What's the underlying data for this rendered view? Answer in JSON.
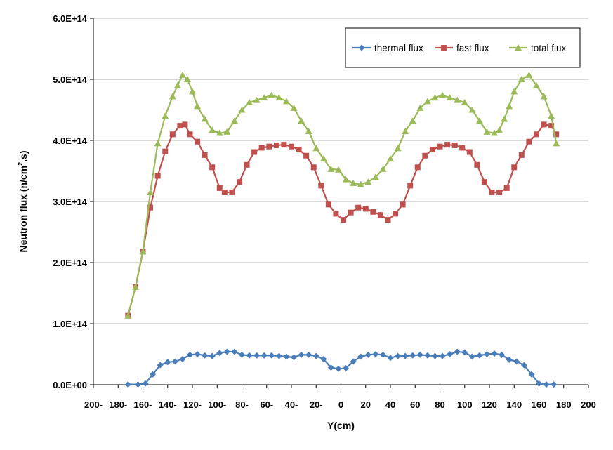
{
  "chart_data": {
    "type": "line",
    "title": "",
    "xlabel": "Y(cm)",
    "ylabel": "Neutron flux (n/cm².s)",
    "ylabel_parts": {
      "pre": "Neutron flux (n/cm",
      "sup": "2",
      "post": ".s)"
    },
    "xlim": [
      -200,
      200
    ],
    "ylim": [
      0,
      600000000000000.0
    ],
    "x_ticks": [
      -200,
      -180,
      -160,
      -140,
      -120,
      -100,
      -80,
      -60,
      -40,
      -20,
      0,
      20,
      40,
      60,
      80,
      100,
      120,
      140,
      160,
      180,
      200
    ],
    "x_tick_labels": [
      "200-",
      "180-",
      "160-",
      "140-",
      "120-",
      "100-",
      "80-",
      "60-",
      "40-",
      "20-",
      "0",
      "20",
      "40",
      "60",
      "80",
      "100",
      "120",
      "140",
      "160",
      "180",
      "200"
    ],
    "y_ticks": [
      0,
      100000000000000.0,
      200000000000000.0,
      300000000000000.0,
      400000000000000.0,
      500000000000000.0,
      600000000000000.0
    ],
    "y_tick_labels": [
      "0.0E+00",
      "1.0E+14",
      "2.0E+14",
      "3.0E+14",
      "4.0E+14",
      "5.0E+14",
      "6.0E+14"
    ],
    "grid": {
      "horizontal": true,
      "vertical": false
    },
    "legend_position": "top-right",
    "series": [
      {
        "name": "thermal flux",
        "color": "#4a7ebb",
        "marker": "diamond",
        "x": [
          -172,
          -164,
          -158,
          -152,
          -146,
          -140,
          -134,
          -128,
          -122,
          -116,
          -110,
          -104,
          -98,
          -92,
          -86,
          -80,
          -74,
          -68,
          -62,
          -56,
          -50,
          -44,
          -38,
          -32,
          -26,
          -20,
          -14,
          -8,
          -2,
          4,
          10,
          16,
          22,
          28,
          34,
          40,
          46,
          52,
          58,
          64,
          70,
          76,
          82,
          88,
          94,
          100,
          106,
          112,
          118,
          124,
          130,
          136,
          142,
          148,
          154,
          160,
          166,
          172
        ],
        "y": [
          500000000000.0,
          500000000000.0,
          2000000000000.0,
          17000000000000.0,
          32000000000000.0,
          37000000000000.0,
          38000000000000.0,
          42000000000000.0,
          49000000000000.0,
          50000000000000.0,
          48000000000000.0,
          47000000000000.0,
          52000000000000.0,
          54000000000000.0,
          54000000000000.0,
          49000000000000.0,
          48000000000000.0,
          48000000000000.0,
          48000000000000.0,
          48000000000000.0,
          47000000000000.0,
          46000000000000.0,
          45000000000000.0,
          49000000000000.0,
          49000000000000.0,
          47000000000000.0,
          42000000000000.0,
          28000000000000.0,
          26000000000000.0,
          27000000000000.0,
          38000000000000.0,
          46000000000000.0,
          49000000000000.0,
          50000000000000.0,
          49000000000000.0,
          44000000000000.0,
          47000000000000.0,
          47000000000000.0,
          48000000000000.0,
          49000000000000.0,
          48000000000000.0,
          47000000000000.0,
          47000000000000.0,
          50000000000000.0,
          54000000000000.0,
          53000000000000.0,
          46000000000000.0,
          48000000000000.0,
          50000000000000.0,
          51000000000000.0,
          49000000000000.0,
          41000000000000.0,
          38000000000000.0,
          32000000000000.0,
          17000000000000.0,
          2000000000000.0,
          500000000000.0,
          500000000000.0
        ]
      },
      {
        "name": "fast flux",
        "color": "#c0504d",
        "marker": "square",
        "x": [
          -172,
          -166,
          -160,
          -154,
          -148,
          -142,
          -136,
          -130,
          -126,
          -122,
          -116,
          -110,
          -104,
          -98,
          -94,
          -88,
          -82,
          -76,
          -70,
          -64,
          -58,
          -52,
          -46,
          -40,
          -34,
          -28,
          -22,
          -16,
          -10,
          -4,
          2,
          8,
          14,
          20,
          26,
          32,
          38,
          44,
          50,
          56,
          62,
          68,
          74,
          80,
          86,
          92,
          98,
          104,
          110,
          116,
          122,
          128,
          134,
          140,
          146,
          152,
          158,
          164,
          170,
          174
        ],
        "y": [
          113000000000000.0,
          160000000000000.0,
          218000000000000.0,
          290000000000000.0,
          342000000000000.0,
          382000000000000.0,
          410000000000000.0,
          424000000000000.0,
          426000000000000.0,
          410000000000000.0,
          398000000000000.0,
          376000000000000.0,
          356000000000000.0,
          322000000000000.0,
          315000000000000.0,
          315000000000000.0,
          332000000000000.0,
          360000000000000.0,
          381000000000000.0,
          388000000000000.0,
          390000000000000.0,
          392000000000000.0,
          393000000000000.0,
          390000000000000.0,
          385000000000000.0,
          375000000000000.0,
          356000000000000.0,
          326000000000000.0,
          295000000000000.0,
          280000000000000.0,
          270000000000000.0,
          282000000000000.0,
          290000000000000.0,
          288000000000000.0,
          283000000000000.0,
          278000000000000.0,
          270000000000000.0,
          280000000000000.0,
          295000000000000.0,
          326000000000000.0,
          356000000000000.0,
          375000000000000.0,
          385000000000000.0,
          390000000000000.0,
          393000000000000.0,
          392000000000000.0,
          388000000000000.0,
          381000000000000.0,
          360000000000000.0,
          332000000000000.0,
          315000000000000.0,
          315000000000000.0,
          322000000000000.0,
          356000000000000.0,
          376000000000000.0,
          398000000000000.0,
          410000000000000.0,
          426000000000000.0,
          424000000000000.0,
          410000000000000.0
        ]
      },
      {
        "name": "total flux",
        "color": "#9bbb59",
        "marker": "triangle",
        "x": [
          -172,
          -166,
          -160,
          -154,
          -148,
          -142,
          -136,
          -132,
          -128,
          -124,
          -120,
          -116,
          -110,
          -104,
          -98,
          -92,
          -86,
          -80,
          -74,
          -68,
          -62,
          -56,
          -50,
          -44,
          -38,
          -32,
          -26,
          -20,
          -14,
          -8,
          -2,
          4,
          10,
          16,
          22,
          28,
          34,
          40,
          46,
          52,
          58,
          64,
          70,
          76,
          82,
          88,
          94,
          100,
          106,
          112,
          118,
          124,
          128,
          132,
          136,
          140,
          146,
          152,
          158,
          164,
          170,
          174
        ],
        "y": [
          113000000000000.0,
          160000000000000.0,
          218000000000000.0,
          315000000000000.0,
          395000000000000.0,
          440000000000000.0,
          472000000000000.0,
          490000000000000.0,
          507000000000000.0,
          500000000000000.0,
          480000000000000.0,
          456000000000000.0,
          435000000000000.0,
          417000000000000.0,
          412000000000000.0,
          414000000000000.0,
          432000000000000.0,
          450000000000000.0,
          462000000000000.0,
          466000000000000.0,
          470000000000000.0,
          474000000000000.0,
          470000000000000.0,
          464000000000000.0,
          453000000000000.0,
          432000000000000.0,
          415000000000000.0,
          387000000000000.0,
          370000000000000.0,
          353000000000000.0,
          352000000000000.0,
          336000000000000.0,
          330000000000000.0,
          328000000000000.0,
          332000000000000.0,
          340000000000000.0,
          353000000000000.0,
          370000000000000.0,
          387000000000000.0,
          415000000000000.0,
          432000000000000.0,
          453000000000000.0,
          464000000000000.0,
          470000000000000.0,
          474000000000000.0,
          470000000000000.0,
          466000000000000.0,
          462000000000000.0,
          450000000000000.0,
          432000000000000.0,
          414000000000000.0,
          412000000000000.0,
          417000000000000.0,
          435000000000000.0,
          456000000000000.0,
          480000000000000.0,
          500000000000000.0,
          507000000000000.0,
          490000000000000.0,
          472000000000000.0,
          440000000000000.0,
          395000000000000.0
        ]
      }
    ]
  }
}
